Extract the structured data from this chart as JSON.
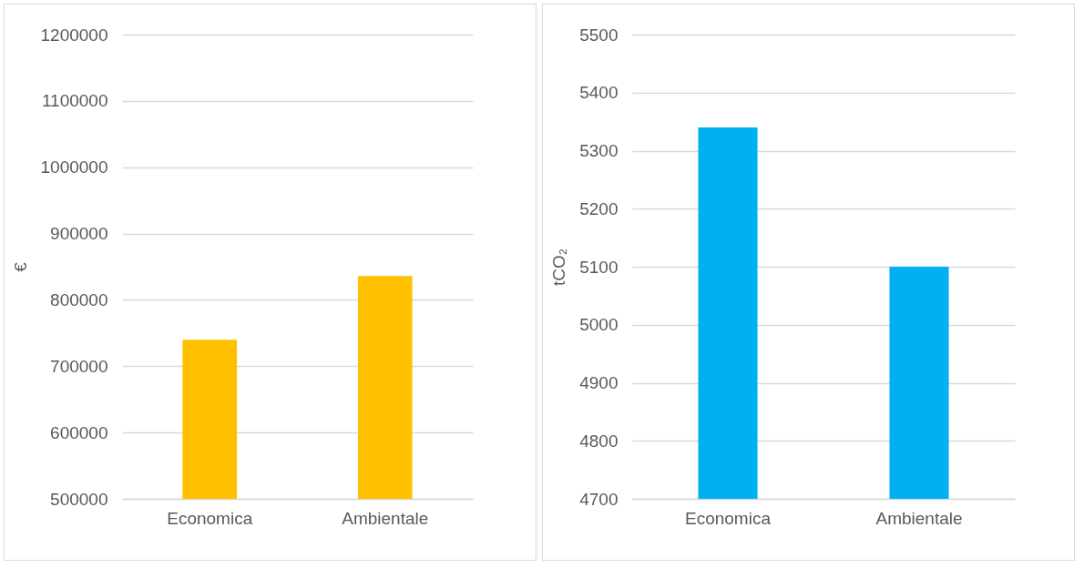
{
  "chart_data": [
    {
      "type": "bar",
      "ylabel": "€",
      "categories": [
        "Economica",
        "Ambientale"
      ],
      "values": [
        740000,
        836000
      ],
      "color": "#ffc000",
      "ylim": [
        500000,
        1200000
      ],
      "yticks": [
        500000,
        600000,
        700000,
        800000,
        900000,
        1000000,
        1100000,
        1200000
      ],
      "grid": "y",
      "legend": false
    },
    {
      "type": "bar",
      "ylabel": "tCO₂",
      "categories": [
        "Economica",
        "Ambientale"
      ],
      "values": [
        5340,
        5100
      ],
      "color": "#00b0f0",
      "ylim": [
        4700,
        5500
      ],
      "yticks": [
        4700,
        4800,
        4900,
        5000,
        5100,
        5200,
        5300,
        5400,
        5500
      ],
      "grid": "y",
      "legend": false
    }
  ]
}
